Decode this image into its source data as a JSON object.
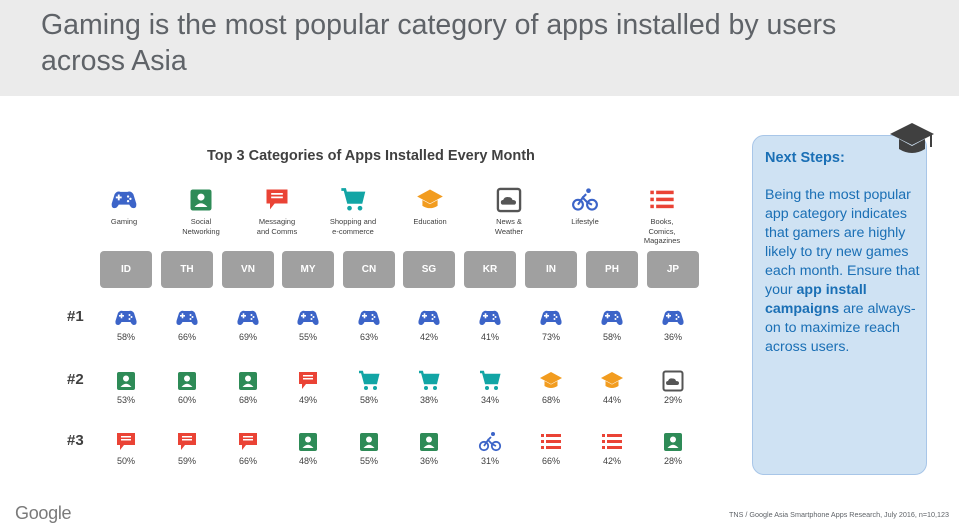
{
  "header": {
    "title": "Gaming is the most popular category of apps installed by users across Asia"
  },
  "chart_data": {
    "type": "table",
    "title": "Top 3 Categories of Apps Installed Every Month",
    "categories_legend": [
      {
        "key": "gaming",
        "label": "Gaming",
        "color": "#3c64c8"
      },
      {
        "key": "social",
        "label": "Social\nNetworking",
        "color": "#2e8b57"
      },
      {
        "key": "messaging",
        "label": "Messaging\nand Comms",
        "color": "#ea4335"
      },
      {
        "key": "shopping",
        "label": "Shopping and\ne-commerce",
        "color": "#12a5a5"
      },
      {
        "key": "education",
        "label": "Education",
        "color": "#f29c1f"
      },
      {
        "key": "news",
        "label": "News &\nWeather",
        "color": "#555555"
      },
      {
        "key": "lifestyle",
        "label": "Lifestyle",
        "color": "#3c64c8"
      },
      {
        "key": "books",
        "label": "Books,\nComics,\nMagazines",
        "color": "#ea4335"
      }
    ],
    "countries": [
      "ID",
      "TH",
      "VN",
      "MY",
      "CN",
      "SG",
      "KR",
      "IN",
      "PH",
      "JP"
    ],
    "rows": [
      {
        "rank": "#1",
        "categories": [
          "gaming",
          "gaming",
          "gaming",
          "gaming",
          "gaming",
          "gaming",
          "gaming",
          "gaming",
          "gaming",
          "gaming"
        ],
        "values": [
          "58%",
          "66%",
          "69%",
          "55%",
          "63%",
          "42%",
          "41%",
          "73%",
          "58%",
          "36%"
        ]
      },
      {
        "rank": "#2",
        "categories": [
          "social",
          "social",
          "social",
          "messaging",
          "shopping",
          "shopping",
          "shopping",
          "education",
          "education",
          "news"
        ],
        "values": [
          "53%",
          "60%",
          "68%",
          "49%",
          "58%",
          "38%",
          "34%",
          "68%",
          "44%",
          "29%"
        ]
      },
      {
        "rank": "#3",
        "categories": [
          "messaging",
          "messaging",
          "messaging",
          "social",
          "social",
          "social",
          "lifestyle",
          "books",
          "books",
          "social"
        ],
        "values": [
          "50%",
          "59%",
          "66%",
          "48%",
          "55%",
          "36%",
          "31%",
          "66%",
          "42%",
          "28%"
        ]
      }
    ]
  },
  "next_steps": {
    "heading": "Next Steps:",
    "body_1": "Being the most popular app category indicates that gamers are highly likely to try new games each month. Ensure that your ",
    "body_bold": "app install campaigns",
    "body_2": " are always-on to maximize reach across users."
  },
  "footer": {
    "logo_text": "Google",
    "source": "TNS / Google Asia Smartphone Apps Research, July 2016, n=10,123"
  }
}
